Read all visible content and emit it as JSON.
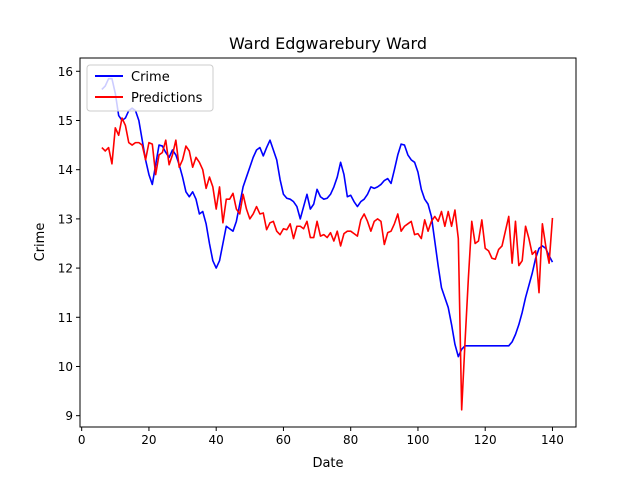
{
  "chart_data": {
    "type": "line",
    "title": "Ward Edgwarebury Ward",
    "xlabel": "Date",
    "ylabel": "Crime",
    "xlim": [
      -0.5,
      147
    ],
    "ylim": [
      8.77,
      16.27
    ],
    "xticks": [
      0,
      20,
      40,
      60,
      80,
      100,
      120,
      140
    ],
    "yticks": [
      9,
      10,
      11,
      12,
      13,
      14,
      15,
      16
    ],
    "grid": false,
    "legend_position": "top-left",
    "series": [
      {
        "name": "Crime",
        "color": "#0000ff",
        "points": [
          [
            6,
            15.63
          ],
          [
            7,
            15.7
          ],
          [
            8,
            15.85
          ],
          [
            9,
            15.85
          ],
          [
            10,
            15.55
          ],
          [
            11,
            15.1
          ],
          [
            12,
            15.0
          ],
          [
            13,
            15.05
          ],
          [
            14,
            15.2
          ],
          [
            15,
            15.25
          ],
          [
            16,
            15.2
          ],
          [
            17,
            15.0
          ],
          [
            18,
            14.6
          ],
          [
            19,
            14.2
          ],
          [
            20,
            13.9
          ],
          [
            21,
            13.7
          ],
          [
            22,
            14.1
          ],
          [
            23,
            14.5
          ],
          [
            24,
            14.48
          ],
          [
            25,
            14.35
          ],
          [
            26,
            14.25
          ],
          [
            27,
            14.4
          ],
          [
            28,
            14.3
          ],
          [
            29,
            14.1
          ],
          [
            30,
            13.85
          ],
          [
            31,
            13.55
          ],
          [
            32,
            13.45
          ],
          [
            33,
            13.55
          ],
          [
            34,
            13.4
          ],
          [
            35,
            13.1
          ],
          [
            36,
            13.15
          ],
          [
            37,
            12.9
          ],
          [
            38,
            12.5
          ],
          [
            39,
            12.15
          ],
          [
            40,
            12.0
          ],
          [
            41,
            12.15
          ],
          [
            42,
            12.5
          ],
          [
            43,
            12.85
          ],
          [
            44,
            12.8
          ],
          [
            45,
            12.75
          ],
          [
            46,
            12.95
          ],
          [
            47,
            13.3
          ],
          [
            48,
            13.65
          ],
          [
            49,
            13.85
          ],
          [
            50,
            14.05
          ],
          [
            51,
            14.25
          ],
          [
            52,
            14.4
          ],
          [
            53,
            14.45
          ],
          [
            54,
            14.28
          ],
          [
            55,
            14.45
          ],
          [
            56,
            14.6
          ],
          [
            57,
            14.4
          ],
          [
            58,
            14.2
          ],
          [
            59,
            13.8
          ],
          [
            60,
            13.5
          ],
          [
            61,
            13.42
          ],
          [
            62,
            13.4
          ],
          [
            63,
            13.35
          ],
          [
            64,
            13.25
          ],
          [
            65,
            13.0
          ],
          [
            66,
            13.25
          ],
          [
            67,
            13.5
          ],
          [
            68,
            13.2
          ],
          [
            69,
            13.3
          ],
          [
            70,
            13.6
          ],
          [
            71,
            13.45
          ],
          [
            72,
            13.4
          ],
          [
            73,
            13.42
          ],
          [
            74,
            13.5
          ],
          [
            75,
            13.65
          ],
          [
            76,
            13.85
          ],
          [
            77,
            14.15
          ],
          [
            78,
            13.9
          ],
          [
            79,
            13.45
          ],
          [
            80,
            13.48
          ],
          [
            81,
            13.35
          ],
          [
            82,
            13.25
          ],
          [
            83,
            13.35
          ],
          [
            84,
            13.4
          ],
          [
            85,
            13.5
          ],
          [
            86,
            13.65
          ],
          [
            87,
            13.62
          ],
          [
            88,
            13.65
          ],
          [
            89,
            13.7
          ],
          [
            90,
            13.78
          ],
          [
            91,
            13.82
          ],
          [
            92,
            13.72
          ],
          [
            93,
            14.0
          ],
          [
            94,
            14.3
          ],
          [
            95,
            14.52
          ],
          [
            96,
            14.5
          ],
          [
            97,
            14.3
          ],
          [
            98,
            14.2
          ],
          [
            99,
            14.15
          ],
          [
            100,
            13.95
          ],
          [
            101,
            13.6
          ],
          [
            102,
            13.4
          ],
          [
            103,
            13.3
          ],
          [
            104,
            13.05
          ],
          [
            105,
            12.55
          ],
          [
            106,
            12.05
          ],
          [
            107,
            11.6
          ],
          [
            108,
            11.4
          ],
          [
            109,
            11.2
          ],
          [
            110,
            10.85
          ],
          [
            111,
            10.45
          ],
          [
            112,
            10.2
          ],
          [
            113,
            10.35
          ],
          [
            114,
            10.42
          ],
          [
            115,
            10.42
          ],
          [
            116,
            10.42
          ],
          [
            117,
            10.42
          ],
          [
            118,
            10.42
          ],
          [
            119,
            10.42
          ],
          [
            120,
            10.42
          ],
          [
            121,
            10.42
          ],
          [
            122,
            10.42
          ],
          [
            123,
            10.42
          ],
          [
            124,
            10.42
          ],
          [
            125,
            10.42
          ],
          [
            126,
            10.42
          ],
          [
            127,
            10.42
          ],
          [
            128,
            10.5
          ],
          [
            129,
            10.65
          ],
          [
            130,
            10.85
          ],
          [
            131,
            11.1
          ],
          [
            132,
            11.4
          ],
          [
            133,
            11.65
          ],
          [
            134,
            11.9
          ],
          [
            135,
            12.2
          ],
          [
            136,
            12.4
          ],
          [
            137,
            12.45
          ],
          [
            138,
            12.4
          ],
          [
            139,
            12.25
          ],
          [
            140,
            12.12
          ]
        ]
      },
      {
        "name": "Predictions",
        "color": "#ff0000",
        "points": [
          [
            6,
            14.45
          ],
          [
            7,
            14.38
          ],
          [
            8,
            14.45
          ],
          [
            9,
            14.12
          ],
          [
            10,
            14.85
          ],
          [
            11,
            14.7
          ],
          [
            12,
            15.05
          ],
          [
            13,
            14.9
          ],
          [
            14,
            14.55
          ],
          [
            15,
            14.5
          ],
          [
            16,
            14.55
          ],
          [
            17,
            14.55
          ],
          [
            18,
            14.5
          ],
          [
            19,
            14.2
          ],
          [
            20,
            14.55
          ],
          [
            21,
            14.52
          ],
          [
            22,
            13.9
          ],
          [
            23,
            14.3
          ],
          [
            24,
            14.35
          ],
          [
            25,
            14.6
          ],
          [
            26,
            14.1
          ],
          [
            27,
            14.3
          ],
          [
            28,
            14.6
          ],
          [
            29,
            14.05
          ],
          [
            30,
            14.2
          ],
          [
            31,
            14.48
          ],
          [
            32,
            14.38
          ],
          [
            33,
            14.05
          ],
          [
            34,
            14.25
          ],
          [
            35,
            14.15
          ],
          [
            36,
            14.0
          ],
          [
            37,
            13.62
          ],
          [
            38,
            13.85
          ],
          [
            39,
            13.65
          ],
          [
            40,
            13.2
          ],
          [
            41,
            13.65
          ],
          [
            42,
            12.92
          ],
          [
            43,
            13.4
          ],
          [
            44,
            13.4
          ],
          [
            45,
            13.52
          ],
          [
            46,
            13.2
          ],
          [
            47,
            13.1
          ],
          [
            48,
            13.5
          ],
          [
            49,
            13.2
          ],
          [
            50,
            13.0
          ],
          [
            51,
            13.1
          ],
          [
            52,
            13.25
          ],
          [
            53,
            13.1
          ],
          [
            54,
            13.12
          ],
          [
            55,
            12.78
          ],
          [
            56,
            12.92
          ],
          [
            57,
            12.95
          ],
          [
            58,
            12.75
          ],
          [
            59,
            12.68
          ],
          [
            60,
            12.8
          ],
          [
            61,
            12.78
          ],
          [
            62,
            12.9
          ],
          [
            63,
            12.6
          ],
          [
            64,
            12.85
          ],
          [
            65,
            12.85
          ],
          [
            66,
            12.8
          ],
          [
            67,
            12.95
          ],
          [
            68,
            12.62
          ],
          [
            69,
            12.62
          ],
          [
            70,
            12.95
          ],
          [
            71,
            12.65
          ],
          [
            72,
            12.68
          ],
          [
            73,
            12.62
          ],
          [
            74,
            12.72
          ],
          [
            75,
            12.55
          ],
          [
            76,
            12.75
          ],
          [
            77,
            12.45
          ],
          [
            78,
            12.7
          ],
          [
            79,
            12.75
          ],
          [
            80,
            12.75
          ],
          [
            81,
            12.7
          ],
          [
            82,
            12.65
          ],
          [
            83,
            12.98
          ],
          [
            84,
            13.1
          ],
          [
            85,
            12.95
          ],
          [
            86,
            12.75
          ],
          [
            87,
            12.95
          ],
          [
            88,
            13.0
          ],
          [
            89,
            12.95
          ],
          [
            90,
            12.48
          ],
          [
            91,
            12.72
          ],
          [
            92,
            12.75
          ],
          [
            93,
            12.9
          ],
          [
            94,
            13.1
          ],
          [
            95,
            12.75
          ],
          [
            96,
            12.85
          ],
          [
            97,
            12.9
          ],
          [
            98,
            12.95
          ],
          [
            99,
            12.68
          ],
          [
            100,
            12.7
          ],
          [
            101,
            12.6
          ],
          [
            102,
            12.98
          ],
          [
            103,
            12.75
          ],
          [
            104,
            12.95
          ],
          [
            105,
            13.05
          ],
          [
            106,
            12.95
          ],
          [
            107,
            13.15
          ],
          [
            108,
            12.85
          ],
          [
            109,
            13.15
          ],
          [
            110,
            12.85
          ],
          [
            111,
            13.18
          ],
          [
            112,
            12.6
          ],
          [
            113,
            9.12
          ],
          [
            114,
            10.5
          ],
          [
            115,
            11.8
          ],
          [
            116,
            12.95
          ],
          [
            117,
            12.5
          ],
          [
            118,
            12.55
          ],
          [
            119,
            12.98
          ],
          [
            120,
            12.4
          ],
          [
            121,
            12.35
          ],
          [
            122,
            12.2
          ],
          [
            123,
            12.18
          ],
          [
            124,
            12.38
          ],
          [
            125,
            12.45
          ],
          [
            126,
            12.75
          ],
          [
            127,
            13.05
          ],
          [
            128,
            12.1
          ],
          [
            129,
            12.95
          ],
          [
            130,
            12.05
          ],
          [
            131,
            12.15
          ],
          [
            132,
            12.85
          ],
          [
            133,
            12.6
          ],
          [
            134,
            12.28
          ],
          [
            135,
            12.35
          ],
          [
            136,
            11.5
          ],
          [
            137,
            12.9
          ],
          [
            138,
            12.45
          ],
          [
            139,
            12.1
          ],
          [
            140,
            13.02
          ]
        ]
      }
    ]
  }
}
